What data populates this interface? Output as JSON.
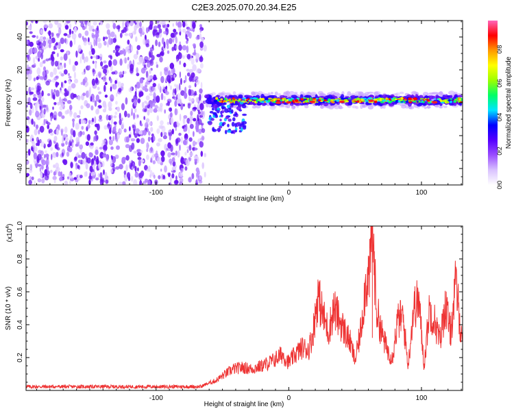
{
  "title": "C2E3.2025.070.20.34.E25",
  "colorbar": {
    "label": "Normalized spectral amplitude",
    "ticks": [
      "0.0",
      "0.2",
      "0.4",
      "0.6",
      "0.8"
    ],
    "tick_values": [
      0.0,
      0.2,
      0.4,
      0.6,
      0.8
    ],
    "range": [
      0.0,
      0.97
    ],
    "colors": [
      "#ffffff",
      "#d9c2ff",
      "#9a4dff",
      "#5500ff",
      "#0000ff",
      "#00e5ff",
      "#00ff66",
      "#9cff00",
      "#ffff00",
      "#ff9900",
      "#ff0000",
      "#ff66bb"
    ]
  },
  "chart_data": [
    {
      "type": "heatmap",
      "title": "C2E3.2025.070.20.34.E25",
      "xlabel": "Height of straight line (km)",
      "ylabel": "Frequency (Hz)",
      "xlim": [
        -198,
        131
      ],
      "ylim": [
        -50,
        50
      ],
      "xticks": [
        -100,
        0,
        100
      ],
      "yticks": [
        -40,
        -20,
        0,
        20,
        40
      ],
      "description_regions": [
        {
          "x": [
            -198,
            -63
          ],
          "y": [
            -50,
            50
          ],
          "level": 0.15
        },
        {
          "x": [
            -62,
            131
          ],
          "y": [
            -3,
            6
          ],
          "level": 0.6
        },
        {
          "x": [
            -60,
            -33
          ],
          "y": [
            -18,
            0
          ],
          "level": 0.3
        }
      ]
    },
    {
      "type": "line",
      "xlabel": "Height of straight line (km)",
      "ylabel": "SNR (10 * v/v)",
      "y_multiplier": "(x10",
      "y_exponent": "4",
      "xlim": [
        -198,
        131
      ],
      "ylim": [
        0,
        1.0
      ],
      "xticks": [
        -100,
        0,
        100
      ],
      "yticks": [
        0.2,
        0.4,
        0.6,
        0.8,
        1.0
      ],
      "series": [
        {
          "color": "#ee3333",
          "x": [
            -198,
            -180,
            -160,
            -140,
            -120,
            -100,
            -80,
            -65,
            -55,
            -48,
            -42,
            -35,
            -28,
            -20,
            -12,
            -5,
            0,
            5,
            10,
            15,
            18,
            22,
            26,
            30,
            34,
            38,
            42,
            46,
            50,
            54,
            58,
            61,
            63,
            66,
            70,
            74,
            78,
            82,
            86,
            90,
            94,
            98,
            102,
            106,
            110,
            114,
            118,
            122,
            126,
            130
          ],
          "y": [
            0.02,
            0.02,
            0.02,
            0.02,
            0.02,
            0.02,
            0.02,
            0.03,
            0.06,
            0.1,
            0.13,
            0.14,
            0.13,
            0.15,
            0.18,
            0.22,
            0.17,
            0.22,
            0.26,
            0.25,
            0.34,
            0.58,
            0.45,
            0.36,
            0.5,
            0.43,
            0.36,
            0.3,
            0.18,
            0.35,
            0.65,
            0.72,
            1.0,
            0.5,
            0.35,
            0.25,
            0.2,
            0.42,
            0.45,
            0.15,
            0.5,
            0.55,
            0.15,
            0.5,
            0.42,
            0.3,
            0.52,
            0.35,
            0.66,
            0.33
          ]
        }
      ]
    }
  ]
}
